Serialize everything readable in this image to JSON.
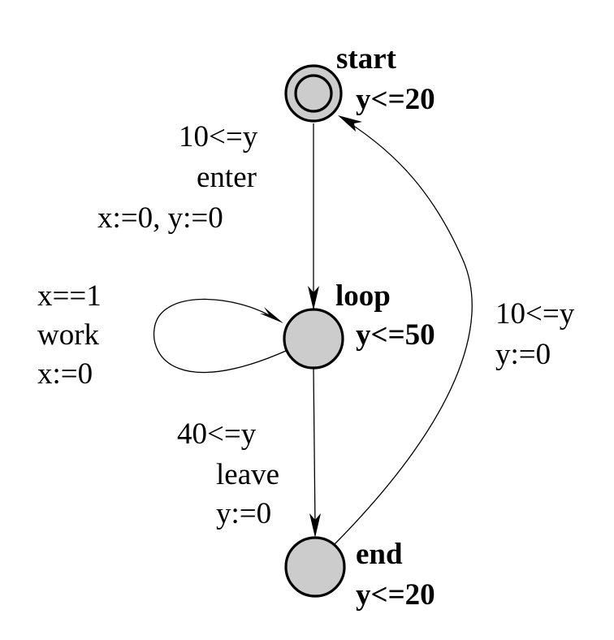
{
  "states": {
    "start": {
      "name": "start",
      "invariant": "y<=20",
      "initial": true
    },
    "loop": {
      "name": "loop",
      "invariant": "y<=50",
      "initial": false
    },
    "end": {
      "name": "end",
      "invariant": "y<=20",
      "initial": false
    }
  },
  "transitions": {
    "start_to_loop": {
      "guard": "10<=y",
      "sync": "enter",
      "update": "x:=0, y:=0"
    },
    "loop_self": {
      "guard": "x==1",
      "sync": "work",
      "update": "x:=0"
    },
    "loop_to_end": {
      "guard": "40<=y",
      "sync": "leave",
      "update": "y:=0"
    },
    "end_to_start": {
      "guard": "10<=y",
      "update": "y:=0"
    }
  },
  "colors": {
    "state_fill": "#cccccc",
    "stroke": "#000000",
    "background": "#ffffff"
  }
}
